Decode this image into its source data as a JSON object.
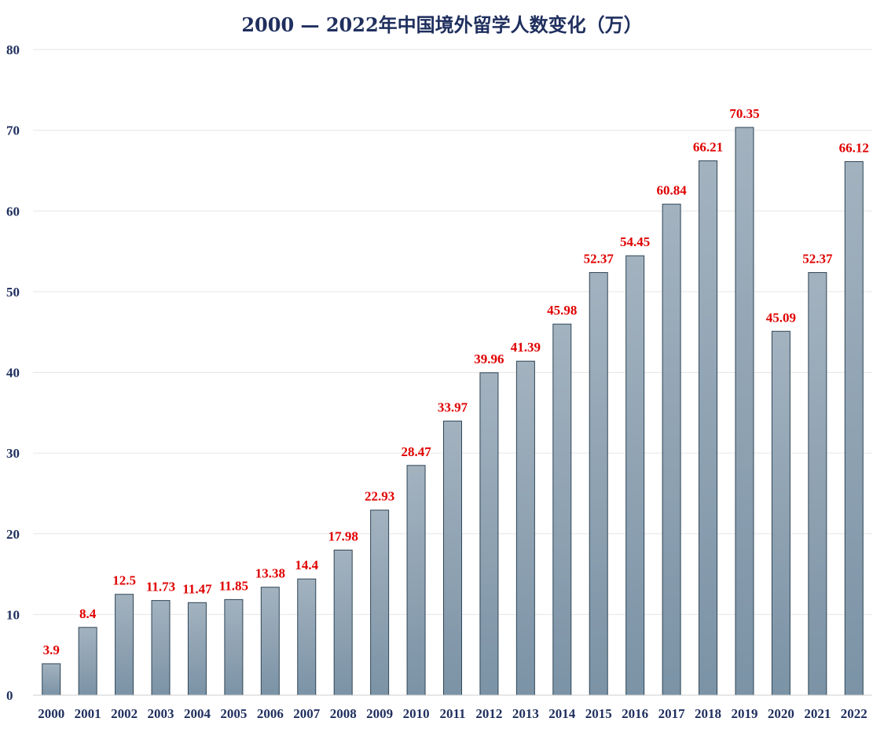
{
  "chart_data": {
    "type": "bar",
    "title": "2000 — 2022年中国境外留学人数变化（万）",
    "xlabel": "",
    "ylabel": "",
    "ylim": [
      0,
      80
    ],
    "yticks": [
      0,
      10,
      20,
      30,
      40,
      50,
      60,
      70,
      80
    ],
    "grid": true,
    "categories": [
      "2000",
      "2001",
      "2002",
      "2003",
      "2004",
      "2005",
      "2006",
      "2007",
      "2008",
      "2009",
      "2010",
      "2011",
      "2012",
      "2013",
      "2014",
      "2015",
      "2016",
      "2017",
      "2018",
      "2019",
      "2020",
      "2021",
      "2022"
    ],
    "values": [
      3.9,
      8.4,
      12.5,
      11.73,
      11.47,
      11.85,
      13.38,
      14.4,
      17.98,
      22.93,
      28.47,
      33.97,
      39.96,
      41.39,
      45.98,
      52.37,
      54.45,
      60.84,
      66.21,
      70.35,
      45.09,
      52.37,
      66.12
    ],
    "labels": [
      "3.9",
      "8.4",
      "12.5",
      "11.73",
      "11.47",
      "11.85",
      "13.38",
      "14.4",
      "17.98",
      "22.93",
      "28.47",
      "33.97",
      "39.96",
      "41.39",
      "45.98",
      "52.37",
      "54.45",
      "60.84",
      "66.21",
      "70.35",
      "45.09",
      "52.37",
      "66.12"
    ],
    "colors": {
      "bar_top": "#a3b2bf",
      "bar_bottom": "#7b93a6",
      "label": "#e00000",
      "axis_text": "#1f2f5e"
    }
  }
}
